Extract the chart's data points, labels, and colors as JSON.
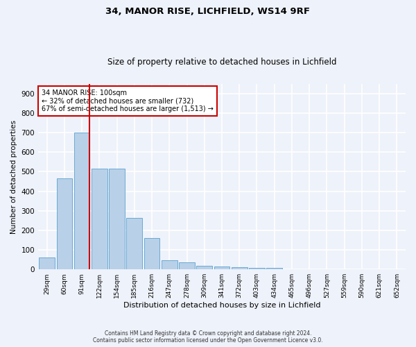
{
  "title": "34, MANOR RISE, LICHFIELD, WS14 9RF",
  "subtitle": "Size of property relative to detached houses in Lichfield",
  "xlabel": "Distribution of detached houses by size in Lichfield",
  "ylabel": "Number of detached properties",
  "categories": [
    "29sqm",
    "60sqm",
    "91sqm",
    "122sqm",
    "154sqm",
    "185sqm",
    "216sqm",
    "247sqm",
    "278sqm",
    "309sqm",
    "341sqm",
    "372sqm",
    "403sqm",
    "434sqm",
    "465sqm",
    "496sqm",
    "527sqm",
    "559sqm",
    "590sqm",
    "621sqm",
    "652sqm"
  ],
  "values": [
    62,
    467,
    700,
    515,
    515,
    265,
    160,
    48,
    35,
    20,
    15,
    13,
    8,
    8,
    0,
    0,
    0,
    0,
    0,
    0,
    0
  ],
  "bar_color": "#b8d0e8",
  "bar_edge_color": "#6aaad4",
  "ylim": [
    0,
    950
  ],
  "yticks": [
    0,
    100,
    200,
    300,
    400,
    500,
    600,
    700,
    800,
    900
  ],
  "annotation_title": "34 MANOR RISE: 100sqm",
  "annotation_line1": "← 32% of detached houses are smaller (732)",
  "annotation_line2": "67% of semi-detached houses are larger (1,513) →",
  "vline_x_index": 2,
  "footnote1": "Contains HM Land Registry data © Crown copyright and database right 2024.",
  "footnote2": "Contains public sector information licensed under the Open Government Licence v3.0.",
  "background_color": "#eef2fa",
  "grid_color": "#ffffff",
  "annotation_box_color": "#ffffff",
  "annotation_box_edge_color": "#cc0000",
  "vline_color": "#cc0000"
}
